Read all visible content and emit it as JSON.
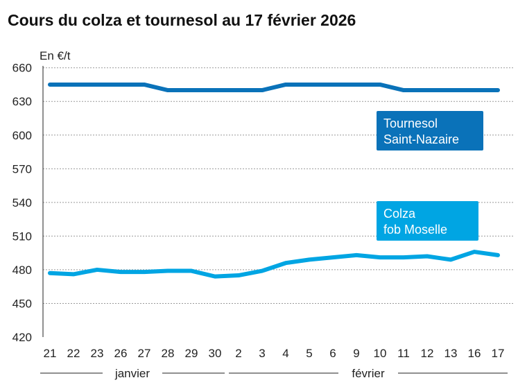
{
  "title": "Cours du colza et tournesol au 17 février 2026",
  "chart_data": {
    "type": "line",
    "title": "Cours du colza et tournesol au 17 février 2026",
    "ylabel": "En €/t",
    "ylim": [
      420,
      660
    ],
    "yticks": [
      420,
      450,
      480,
      510,
      540,
      570,
      600,
      630,
      660
    ],
    "grid": true,
    "categories": [
      "21",
      "22",
      "23",
      "26",
      "27",
      "28",
      "29",
      "30",
      "2",
      "3",
      "4",
      "5",
      "6",
      "9",
      "10",
      "11",
      "12",
      "13",
      "16",
      "17"
    ],
    "months": [
      {
        "label": "janvier",
        "from": 0,
        "to": 7
      },
      {
        "label": "février",
        "from": 8,
        "to": 19
      }
    ],
    "series": [
      {
        "name": "Tournesol Saint-Nazaire",
        "name_lines": [
          "Tournesol",
          "Saint-Nazaire"
        ],
        "color": "#0a72b9",
        "values": [
          645,
          645,
          645,
          645,
          645,
          640,
          640,
          640,
          640,
          640,
          645,
          645,
          645,
          645,
          645,
          640,
          640,
          640,
          640,
          640
        ]
      },
      {
        "name": "Colza fob Moselle",
        "name_lines": [
          "Colza",
          "fob Moselle"
        ],
        "color": "#00a5e3",
        "values": [
          477,
          476,
          480,
          478,
          478,
          479,
          479,
          474,
          475,
          479,
          486,
          489,
          491,
          493,
          491,
          491,
          492,
          489,
          496,
          493
        ]
      }
    ]
  }
}
